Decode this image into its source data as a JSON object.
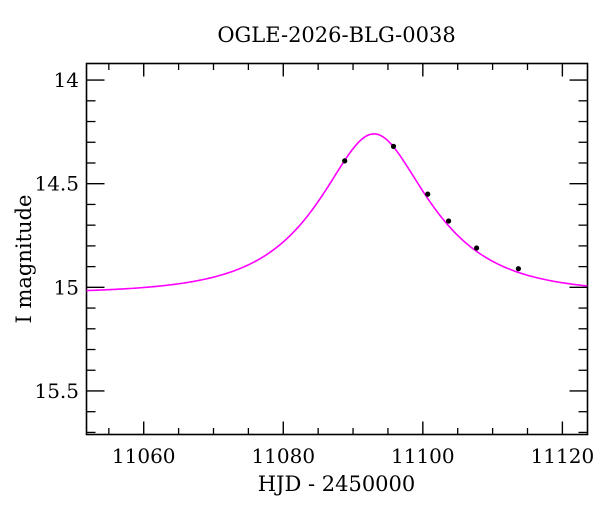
{
  "title": "OGLE-2026-BLG-0038",
  "colors": {
    "background": "#ffffff",
    "frame": "#000000",
    "curve": "#ff00ff",
    "points": "#000000",
    "text": "#000000"
  },
  "chart_data": {
    "type": "line",
    "title": "OGLE-2026-BLG-0038",
    "xlabel": "HJD - 2450000",
    "ylabel": "I magnitude",
    "xlim": [
      11051.8,
      11123.6
    ],
    "ylim": [
      13.92,
      15.71
    ],
    "y_axis_inverted": true,
    "grid": false,
    "legend_position": "none",
    "x_major_ticks": [
      11060,
      11080,
      11100,
      11120
    ],
    "x_tick_labels": [
      "11060",
      "11080",
      "11100",
      "11120"
    ],
    "x_minor_step": 5,
    "y_major_ticks": [
      14,
      14.5,
      15,
      15.5
    ],
    "y_tick_labels": [
      "14",
      "14.5",
      "15",
      "15.5"
    ],
    "y_minor_step": 0.1,
    "series": [
      {
        "name": "microlensing-model-curve",
        "type": "line",
        "color": "#ff00ff",
        "model": "paczynski",
        "params": {
          "baseline_mag": 15.03,
          "t0": 11093.0,
          "tE_days": 13.0,
          "u0": 0.545,
          "peak_mag": 14.26
        }
      },
      {
        "name": "photometry-points",
        "type": "scatter",
        "color": "#000000",
        "x": [
          11088.8,
          11095.8,
          11100.7,
          11103.7,
          11107.7,
          11113.7
        ],
        "y": [
          14.39,
          14.32,
          14.55,
          14.68,
          14.81,
          14.91
        ]
      }
    ]
  }
}
